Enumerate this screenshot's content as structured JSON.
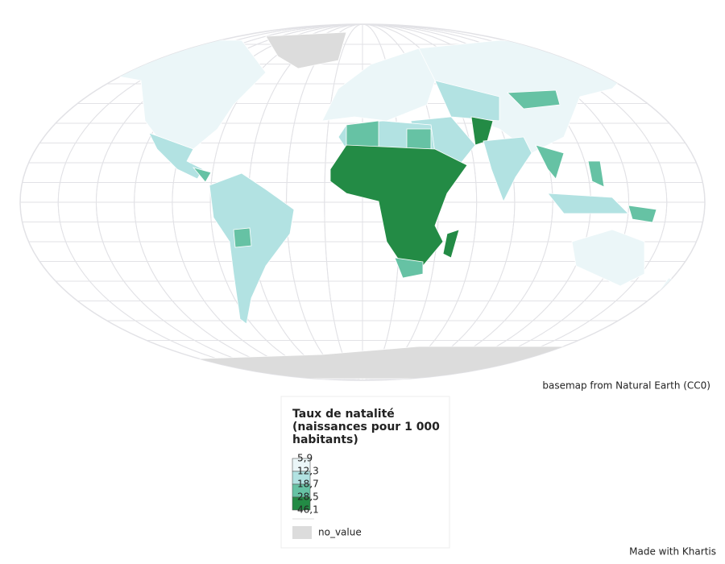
{
  "legend": {
    "title_lines": [
      "Taux de natalité",
      "(naissances pour 1 000",
      "habitants)"
    ],
    "breaks": [
      {
        "value": 5.9,
        "label": "5,9"
      },
      {
        "value": 12.3,
        "label": "12,3"
      },
      {
        "value": 18.7,
        "label": "18,7"
      },
      {
        "value": 28.5,
        "label": "28,5"
      },
      {
        "value": 46.1,
        "label": "46,1"
      }
    ],
    "colors": [
      "#ebf6f8",
      "#b2e2e2",
      "#66c2a4",
      "#238b45"
    ],
    "no_value": {
      "label": "no_value",
      "color": "#dcdcdc"
    }
  },
  "credits": {
    "basemap": "basemap from Natural Earth (CC0)",
    "made_with": "Made with Khartis"
  }
}
